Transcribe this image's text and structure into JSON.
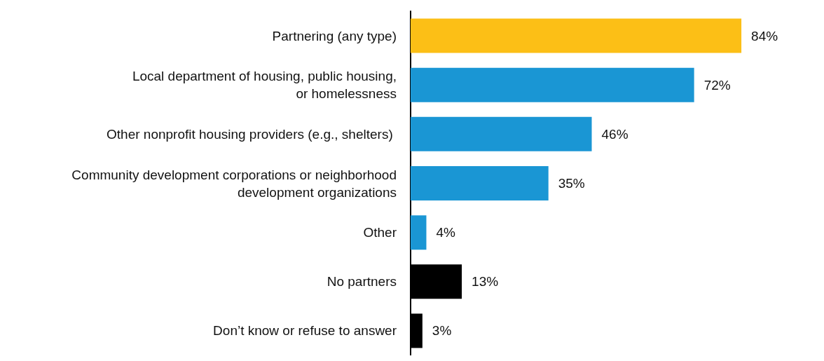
{
  "chart_data": {
    "type": "bar",
    "orientation": "horizontal",
    "categories": [
      "Partnering (any type)",
      "Local department of housing, public housing,\nor homelessness",
      "Other nonprofit housing providers (e.g., shelters) ",
      "Community development corporations or neighborhood\ndevelopment organizations",
      "Other",
      "No partners",
      "Don’t know or refuse to answer"
    ],
    "values": [
      84,
      72,
      46,
      35,
      4,
      13,
      3
    ],
    "colors": [
      "#fcbf16",
      "#1a96d4",
      "#1a96d4",
      "#1a96d4",
      "#1a96d4",
      "#000000",
      "#000000"
    ],
    "value_labels": [
      "84%",
      "72%",
      "46%",
      "35%",
      "4%",
      "13%",
      "3%"
    ]
  }
}
